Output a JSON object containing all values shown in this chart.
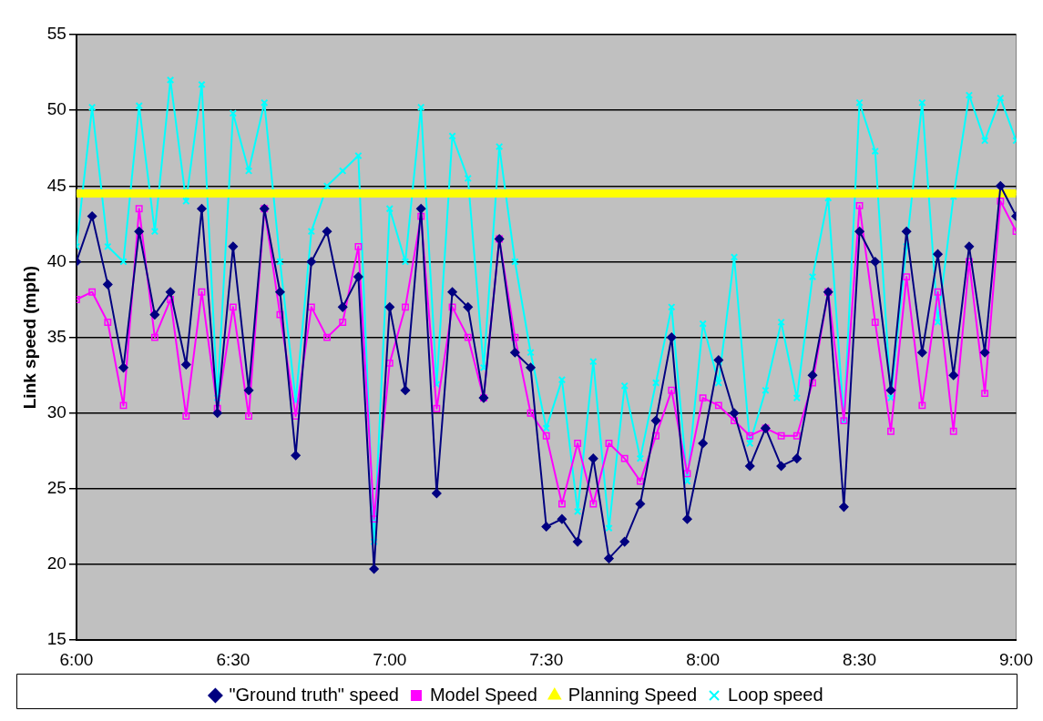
{
  "chart_data": {
    "type": "line",
    "ylabel": "Link speed (mph)",
    "x": [
      6,
      6.05,
      6.1,
      6.15,
      6.2,
      6.25,
      6.3,
      6.35,
      6.4,
      6.45,
      6.5,
      6.55,
      6.6,
      6.65,
      6.7,
      6.75,
      6.8,
      6.85,
      6.9,
      6.95,
      7,
      7.05,
      7.1,
      7.15,
      7.2,
      7.25,
      7.3,
      7.35,
      7.4,
      7.45,
      7.5,
      7.55,
      7.6,
      7.65,
      7.7,
      7.75,
      7.8,
      7.85,
      7.9,
      7.95,
      8,
      8.05,
      8.1,
      8.15,
      8.2,
      8.25,
      8.3,
      8.35,
      8.4,
      8.45,
      8.5,
      8.55,
      8.6,
      8.65,
      8.7,
      8.75,
      8.8,
      8.85,
      8.9,
      8.95,
      9
    ],
    "series": [
      {
        "name": "\"Ground truth\" speed",
        "color": "#000080",
        "marker": "diamond",
        "values": [
          40,
          43,
          38.5,
          33,
          42,
          36.5,
          38,
          33.2,
          43.5,
          30,
          41,
          31.5,
          43.5,
          38,
          27.2,
          40,
          42,
          37,
          39,
          19.7,
          37,
          31.5,
          43.5,
          24.7,
          38,
          37,
          31,
          41.5,
          34,
          33,
          22.5,
          23,
          21.5,
          27,
          20.4,
          21.5,
          24,
          29.5,
          35,
          23,
          28,
          33.5,
          30,
          26.5,
          29,
          26.5,
          27,
          32.5,
          38,
          23.8,
          42,
          40,
          31.5,
          42,
          34,
          40.5,
          32.5,
          41,
          34,
          45,
          43
        ]
      },
      {
        "name": "Model Speed",
        "color": "#ff00ff",
        "marker": "square",
        "values": [
          37.5,
          38,
          36,
          30.5,
          43.5,
          35,
          37.5,
          29.8,
          38,
          30.3,
          37,
          29.8,
          43.5,
          36.5,
          29.8,
          37,
          35,
          36,
          41,
          23,
          33.3,
          37,
          43,
          30.3,
          37,
          35,
          31,
          41.5,
          35,
          30,
          28.5,
          24,
          28,
          24,
          28,
          27,
          25.5,
          28.5,
          31.5,
          26,
          31,
          30.5,
          29.5,
          28.5,
          29,
          28.5,
          28.5,
          32,
          38,
          29.5,
          43.7,
          36,
          28.8,
          39,
          30.5,
          38,
          28.8,
          40,
          31.3,
          44,
          42
        ]
      },
      {
        "name": "Planning Speed",
        "color": "#ffff00",
        "marker": "triangle",
        "values": [
          44.5,
          44.5,
          44.5,
          44.5,
          44.5,
          44.5,
          44.5,
          44.5,
          44.5,
          44.5,
          44.5,
          44.5,
          44.5,
          44.5,
          44.5,
          44.5,
          44.5,
          44.5,
          44.5,
          44.5,
          44.5,
          44.5,
          44.5,
          44.5,
          44.5,
          44.5,
          44.5,
          44.5,
          44.5,
          44.5,
          44.5,
          44.5,
          44.5,
          44.5,
          44.5,
          44.5,
          44.5,
          44.5,
          44.5,
          44.5,
          44.5,
          44.5,
          44.5,
          44.5,
          44.5,
          44.5,
          44.5,
          44.5,
          44.5,
          44.5,
          44.5,
          44.5,
          44.5,
          44.5,
          44.5,
          44.5,
          44.5,
          44.5,
          44.5,
          44.5,
          44.5
        ]
      },
      {
        "name": "Loop speed",
        "color": "#00ffff",
        "marker": "cross",
        "values": [
          41,
          50.2,
          41,
          40,
          50.3,
          42,
          52,
          44,
          51.7,
          31,
          49.8,
          46,
          50.5,
          40,
          30.8,
          42,
          45,
          46,
          47,
          21.5,
          43.5,
          40,
          50.2,
          31.9,
          48.3,
          45.5,
          33,
          47.6,
          40,
          34,
          29,
          32.2,
          23.5,
          33.4,
          22.4,
          31.8,
          27,
          32,
          37,
          25.5,
          35.9,
          32,
          40.3,
          28,
          31.5,
          36,
          31,
          39,
          44.2,
          29.5,
          50.5,
          47.3,
          31,
          41,
          50.5,
          36,
          44.3,
          51,
          48,
          50.8,
          48
        ]
      }
    ],
    "xlim": [
      6,
      9
    ],
    "xticks": [
      {
        "value": 6,
        "label": "6:00"
      },
      {
        "value": 6.5,
        "label": "6:30"
      },
      {
        "value": 7,
        "label": "7:00"
      },
      {
        "value": 7.5,
        "label": "7:30"
      },
      {
        "value": 8,
        "label": "8:00"
      },
      {
        "value": 8.5,
        "label": "8:30"
      },
      {
        "value": 9,
        "label": "9:00"
      }
    ],
    "ylim": [
      15,
      55
    ],
    "yticks": [
      15,
      20,
      25,
      30,
      35,
      40,
      45,
      50,
      55
    ],
    "grid": "y",
    "legend": "bottom",
    "line_style": "solid"
  }
}
